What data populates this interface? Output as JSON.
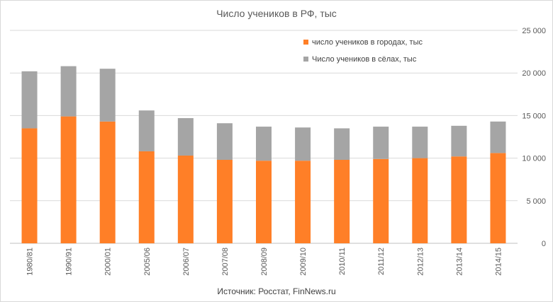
{
  "colors": {
    "urban": "#FF7F27",
    "rural": "#A5A5A5",
    "grid": "#D9D9D9",
    "axis": "#BFBFBF"
  },
  "chart_data": {
    "type": "bar",
    "stacked": true,
    "title": "Число учеников в РФ, тыс",
    "categories": [
      "1980/81",
      "1990/91",
      "2000/01",
      "2005/06",
      "2006/07",
      "2007/08",
      "2008/09",
      "2009/10",
      "2010/11",
      "2011/12",
      "2012/13",
      "2013/14",
      "2014/15"
    ],
    "series": [
      {
        "name": "число учеников в городах, тыс",
        "color": "#FF7F27",
        "values": [
          13500,
          14900,
          14300,
          10800,
          10300,
          9800,
          9700,
          9700,
          9800,
          9900,
          10000,
          10200,
          10600
        ]
      },
      {
        "name": "Число учеников в сёлах, тыс",
        "color": "#A5A5A5",
        "values": [
          6700,
          5900,
          6200,
          4800,
          4400,
          4300,
          4000,
          3900,
          3700,
          3800,
          3700,
          3600,
          3700
        ]
      }
    ],
    "y_axis": {
      "position": "right",
      "ylim": [
        0,
        25000
      ],
      "ticks": [
        0,
        5000,
        10000,
        15000,
        20000,
        25000
      ],
      "tick_labels": [
        "0",
        "5 000",
        "10 000",
        "15 000",
        "20 000",
        "25 000"
      ]
    },
    "grid": true,
    "legend_position": "top-right",
    "source": "Источник: Росстат, FinNews.ru"
  }
}
